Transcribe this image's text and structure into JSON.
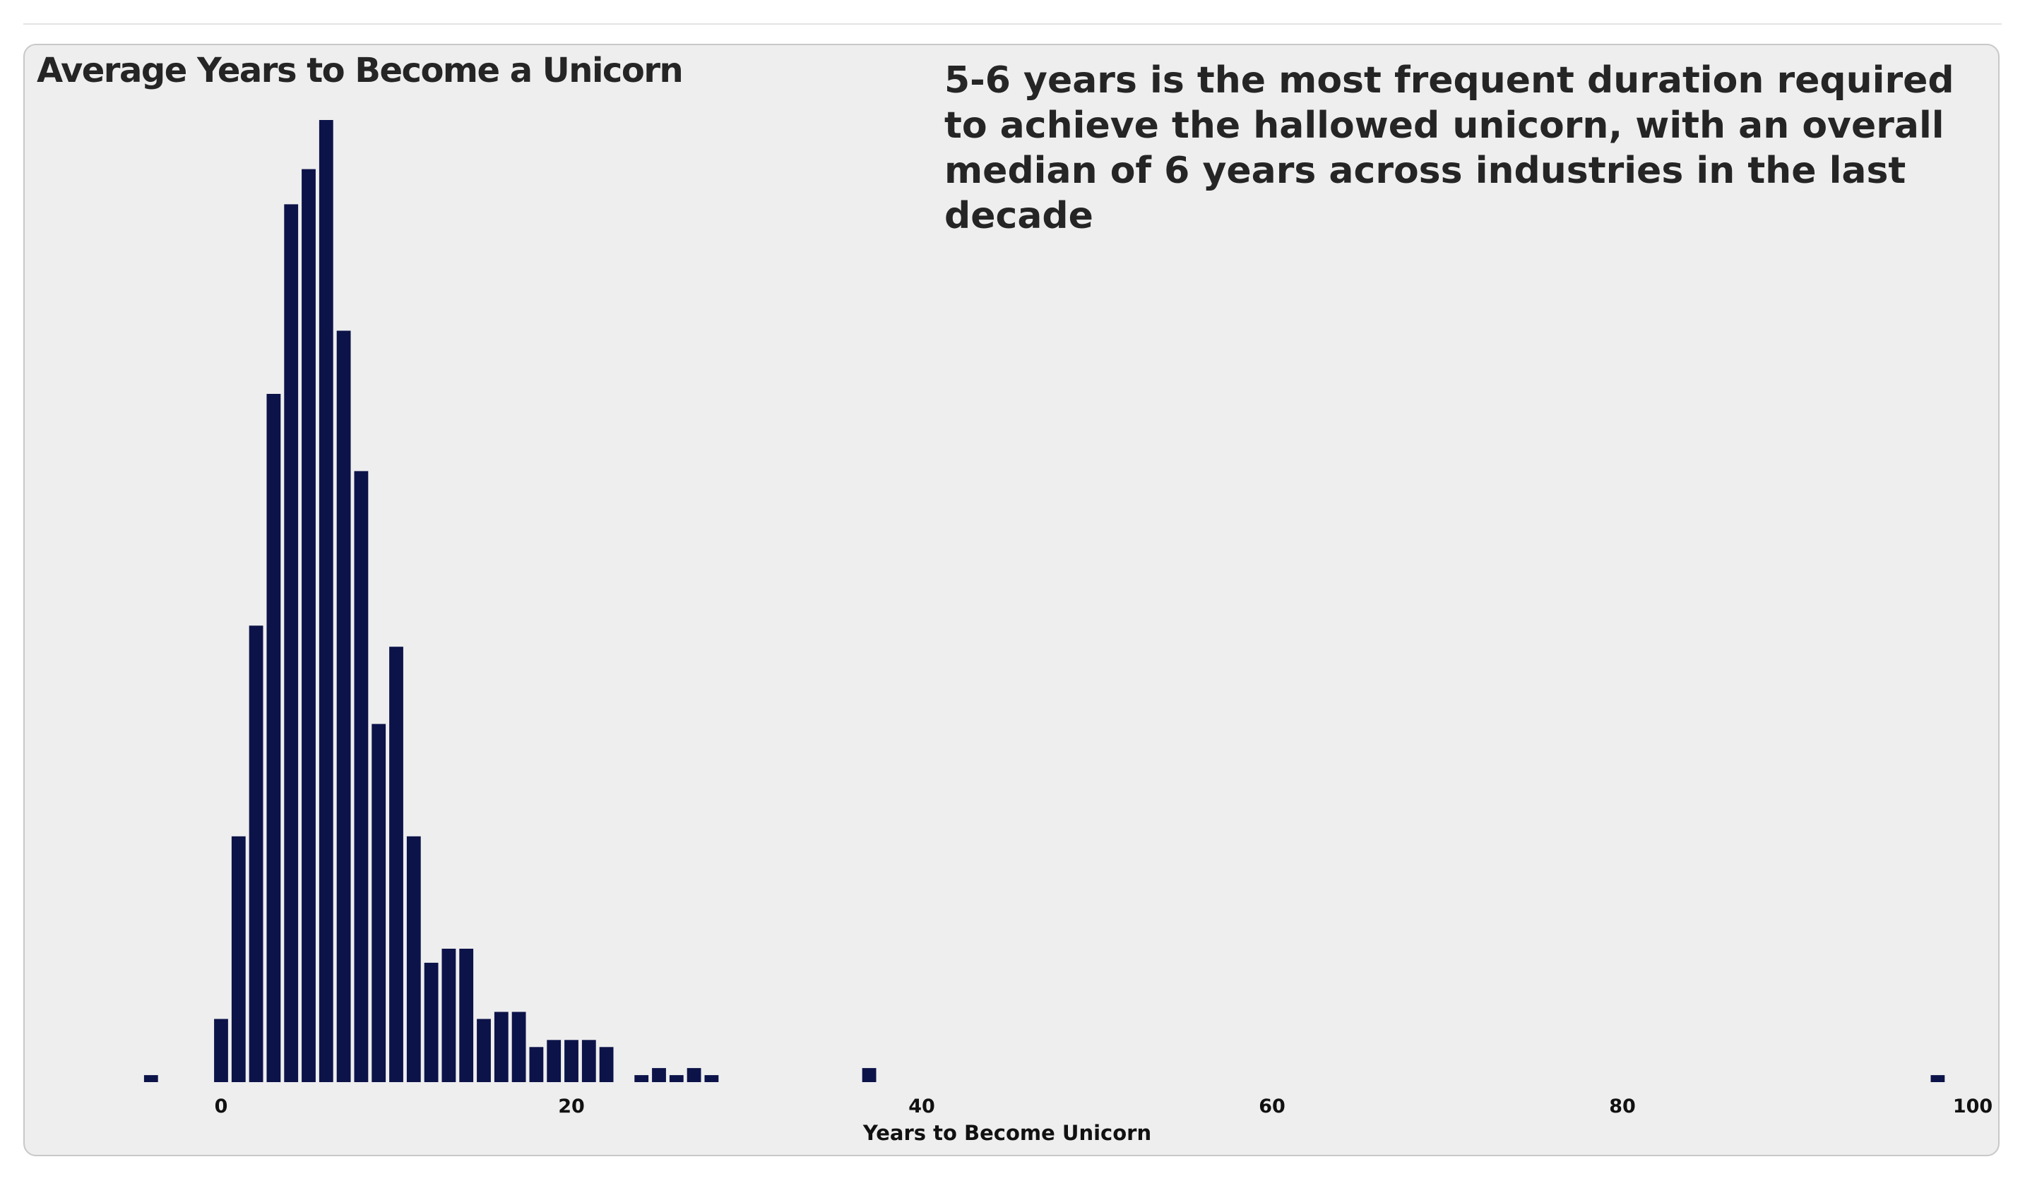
{
  "chart_data": {
    "type": "bar",
    "title": "Average Years to Become a Unicorn",
    "annotation": "5-6 years is the most frequent duration required to achieve the hallowed unicorn, with an overall median of 6 years across industries in the last decade",
    "xlabel": "Years to Become Unicorn",
    "ylabel": "",
    "xlim": [
      -5,
      100
    ],
    "ylim": [
      0,
      137
    ],
    "xticks": [
      0,
      20,
      40,
      60,
      80,
      100
    ],
    "x": [
      -4,
      0,
      1,
      2,
      3,
      4,
      5,
      6,
      7,
      8,
      9,
      10,
      11,
      12,
      13,
      14,
      15,
      16,
      17,
      18,
      19,
      20,
      21,
      22,
      24,
      25,
      26,
      27,
      28,
      37,
      98
    ],
    "values": [
      1,
      9,
      35,
      65,
      98,
      125,
      130,
      137,
      107,
      87,
      51,
      62,
      35,
      17,
      19,
      19,
      9,
      10,
      10,
      5,
      6,
      6,
      6,
      5,
      1,
      2,
      1,
      2,
      1,
      2,
      1
    ],
    "bar_color": "#0c1349",
    "grid": false,
    "legend": "none"
  }
}
